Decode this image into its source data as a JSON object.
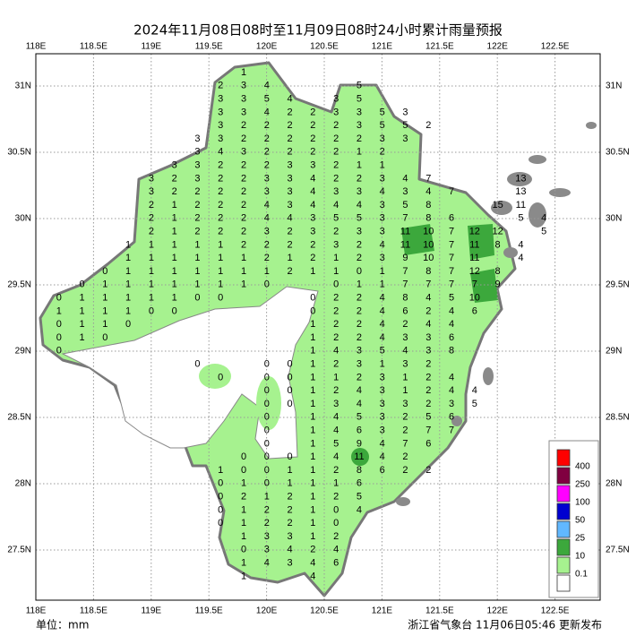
{
  "header": {
    "title": "2024年11月08日08时至11月09日08时24小时累计雨量预报"
  },
  "axes": {
    "lon_labels": [
      "118E",
      "118.5E",
      "119E",
      "119.5E",
      "120E",
      "120.5E",
      "121E",
      "121.5E",
      "122E",
      "122.5E"
    ],
    "lat_labels": [
      "31N",
      "30.5N",
      "30N",
      "29.5N",
      "29N",
      "28.5N",
      "28N",
      "27.5N"
    ]
  },
  "grid": {
    "rows": [
      [
        null,
        null,
        null,
        null,
        null,
        null,
        null,
        null,
        null,
        1,
        null,
        null,
        null,
        null,
        null,
        null,
        null,
        null,
        null,
        null,
        null,
        null,
        null
      ],
      [
        null,
        null,
        null,
        null,
        null,
        null,
        null,
        null,
        2,
        3,
        4,
        null,
        null,
        null,
        5,
        null,
        null,
        null,
        null,
        null,
        null,
        null,
        null
      ],
      [
        null,
        null,
        null,
        null,
        null,
        null,
        null,
        null,
        3,
        3,
        5,
        4,
        null,
        3,
        5,
        null,
        null,
        null,
        null,
        null,
        null,
        null,
        null
      ],
      [
        null,
        null,
        null,
        null,
        null,
        null,
        null,
        null,
        3,
        3,
        4,
        2,
        2,
        3,
        3,
        5,
        3,
        null,
        null,
        null,
        null,
        null,
        null
      ],
      [
        null,
        null,
        null,
        null,
        null,
        null,
        null,
        null,
        3,
        2,
        2,
        2,
        2,
        2,
        3,
        5,
        5,
        2,
        null,
        null,
        null,
        null,
        null
      ],
      [
        null,
        null,
        null,
        null,
        null,
        null,
        null,
        3,
        3,
        2,
        2,
        2,
        2,
        2,
        2,
        3,
        3,
        null,
        null,
        null,
        null,
        null,
        null
      ],
      [
        null,
        null,
        null,
        null,
        null,
        null,
        null,
        3,
        4,
        3,
        2,
        2,
        2,
        2,
        1,
        2,
        null,
        null,
        null,
        null,
        null,
        null,
        null
      ],
      [
        null,
        null,
        null,
        null,
        null,
        null,
        3,
        3,
        2,
        2,
        2,
        3,
        3,
        2,
        1,
        1,
        null,
        null,
        null,
        null,
        null,
        null,
        null
      ],
      [
        null,
        null,
        null,
        null,
        null,
        3,
        2,
        3,
        2,
        2,
        3,
        3,
        4,
        2,
        2,
        3,
        4,
        7,
        null,
        null,
        null,
        13,
        null
      ],
      [
        null,
        null,
        null,
        null,
        null,
        3,
        2,
        2,
        2,
        2,
        3,
        3,
        4,
        3,
        3,
        4,
        3,
        4,
        7,
        null,
        null,
        13,
        null
      ],
      [
        null,
        null,
        null,
        null,
        null,
        2,
        1,
        2,
        2,
        2,
        4,
        3,
        4,
        4,
        4,
        3,
        5,
        8,
        null,
        null,
        15,
        11,
        null
      ],
      [
        null,
        null,
        null,
        null,
        null,
        2,
        1,
        2,
        2,
        2,
        4,
        4,
        3,
        5,
        5,
        3,
        7,
        8,
        6,
        null,
        null,
        5,
        4
      ],
      [
        null,
        null,
        null,
        null,
        null,
        2,
        1,
        2,
        2,
        2,
        3,
        2,
        3,
        2,
        3,
        3,
        11,
        10,
        7,
        12,
        12,
        null,
        5
      ],
      [
        null,
        null,
        null,
        null,
        1,
        1,
        1,
        1,
        1,
        2,
        2,
        2,
        2,
        3,
        2,
        4,
        11,
        10,
        7,
        11,
        8,
        4,
        null
      ],
      [
        null,
        null,
        null,
        null,
        1,
        1,
        1,
        1,
        1,
        1,
        2,
        1,
        2,
        1,
        2,
        3,
        9,
        10,
        7,
        11,
        null,
        4,
        null
      ],
      [
        null,
        null,
        null,
        0,
        1,
        1,
        1,
        1,
        1,
        1,
        1,
        2,
        1,
        1,
        0,
        1,
        7,
        8,
        7,
        12,
        8,
        null,
        null
      ],
      [
        null,
        null,
        0,
        1,
        1,
        1,
        1,
        1,
        1,
        1,
        0,
        null,
        null,
        0,
        1,
        1,
        7,
        7,
        7,
        7,
        9,
        null,
        null
      ],
      [
        null,
        0,
        1,
        1,
        1,
        1,
        1,
        0,
        0,
        null,
        null,
        null,
        0,
        2,
        2,
        4,
        8,
        4,
        5,
        10,
        null,
        null,
        null
      ],
      [
        null,
        1,
        1,
        1,
        1,
        0,
        0,
        null,
        null,
        null,
        null,
        null,
        0,
        2,
        2,
        4,
        6,
        2,
        4,
        6,
        null,
        null,
        null
      ],
      [
        null,
        0,
        1,
        1,
        0,
        null,
        null,
        null,
        null,
        null,
        null,
        null,
        1,
        2,
        2,
        4,
        2,
        4,
        4,
        null,
        null,
        null,
        null
      ],
      [
        null,
        0,
        1,
        0,
        null,
        null,
        null,
        null,
        null,
        null,
        null,
        null,
        1,
        2,
        2,
        4,
        3,
        3,
        6,
        null,
        null,
        null,
        null
      ],
      [
        null,
        0,
        null,
        null,
        null,
        null,
        null,
        null,
        null,
        null,
        null,
        null,
        1,
        4,
        3,
        5,
        4,
        3,
        8,
        null,
        null,
        null,
        null
      ],
      [
        null,
        null,
        null,
        null,
        null,
        null,
        null,
        0,
        null,
        null,
        0,
        0,
        1,
        2,
        3,
        1,
        3,
        2,
        null,
        null,
        null,
        null,
        null
      ],
      [
        null,
        null,
        null,
        null,
        null,
        null,
        null,
        null,
        0,
        null,
        0,
        0,
        1,
        1,
        2,
        3,
        1,
        2,
        4,
        null,
        null,
        null,
        null
      ],
      [
        null,
        null,
        null,
        null,
        null,
        null,
        null,
        null,
        null,
        null,
        0,
        0,
        1,
        2,
        4,
        3,
        1,
        2,
        4,
        4,
        null,
        null,
        null
      ],
      [
        null,
        null,
        null,
        null,
        null,
        null,
        null,
        null,
        null,
        null,
        0,
        0,
        1,
        3,
        4,
        3,
        3,
        2,
        3,
        5,
        null,
        null,
        null
      ],
      [
        null,
        null,
        null,
        null,
        null,
        null,
        null,
        null,
        null,
        null,
        0,
        null,
        1,
        4,
        5,
        3,
        2,
        5,
        6,
        null,
        null,
        null,
        null
      ],
      [
        null,
        null,
        null,
        null,
        null,
        null,
        null,
        null,
        null,
        null,
        0,
        null,
        1,
        4,
        6,
        3,
        2,
        7,
        7,
        null,
        null,
        null,
        null
      ],
      [
        null,
        null,
        null,
        null,
        null,
        null,
        null,
        null,
        null,
        null,
        0,
        null,
        1,
        5,
        9,
        4,
        7,
        6,
        null,
        null,
        null,
        null,
        null
      ],
      [
        null,
        null,
        null,
        null,
        null,
        null,
        null,
        null,
        null,
        0,
        0,
        0,
        1,
        4,
        11,
        4,
        2,
        null,
        null,
        null,
        null,
        null,
        null
      ],
      [
        null,
        null,
        null,
        null,
        null,
        null,
        null,
        null,
        1,
        0,
        0,
        1,
        1,
        2,
        8,
        6,
        2,
        2,
        null,
        null,
        null,
        null,
        null
      ],
      [
        null,
        null,
        null,
        null,
        null,
        null,
        null,
        null,
        0,
        1,
        0,
        1,
        1,
        1,
        6,
        null,
        null,
        null,
        null,
        null,
        null,
        null,
        null
      ],
      [
        null,
        null,
        null,
        null,
        null,
        null,
        null,
        null,
        0,
        2,
        1,
        2,
        1,
        2,
        5,
        null,
        null,
        null,
        null,
        null,
        null,
        null,
        null
      ],
      [
        null,
        null,
        null,
        null,
        null,
        null,
        null,
        null,
        0,
        1,
        2,
        2,
        1,
        0,
        4,
        null,
        null,
        null,
        null,
        null,
        null,
        null,
        null
      ],
      [
        null,
        null,
        null,
        null,
        null,
        null,
        null,
        null,
        0,
        1,
        2,
        2,
        1,
        0,
        null,
        null,
        null,
        null,
        null,
        null,
        null,
        null,
        null
      ],
      [
        null,
        null,
        null,
        null,
        null,
        null,
        null,
        null,
        null,
        1,
        3,
        3,
        1,
        2,
        null,
        null,
        null,
        null,
        null,
        null,
        null,
        null,
        null
      ],
      [
        null,
        null,
        null,
        null,
        null,
        null,
        null,
        null,
        null,
        0,
        3,
        4,
        2,
        4,
        null,
        null,
        null,
        null,
        null,
        null,
        null,
        null,
        null
      ],
      [
        null,
        null,
        null,
        null,
        null,
        null,
        null,
        null,
        null,
        1,
        4,
        3,
        4,
        6,
        null,
        null,
        null,
        null,
        null,
        null,
        null,
        null,
        null
      ],
      [
        null,
        null,
        null,
        null,
        null,
        null,
        null,
        null,
        null,
        1,
        null,
        null,
        4,
        null,
        null,
        null,
        null,
        null,
        null,
        null,
        null,
        null,
        null
      ]
    ]
  },
  "legend": {
    "labels": [
      "400",
      "250",
      "100",
      "50",
      "25",
      "10",
      "0.1"
    ],
    "colors": [
      "#ff0000",
      "#800040",
      "#ff00ff",
      "#0000d0",
      "#61b8ff",
      "#3ca83c",
      "#a6f28f",
      "#ffffff"
    ]
  },
  "footer": {
    "unit": "单位：mm",
    "issuer": "浙江省气象台 11月06日05:46 更新发布"
  }
}
